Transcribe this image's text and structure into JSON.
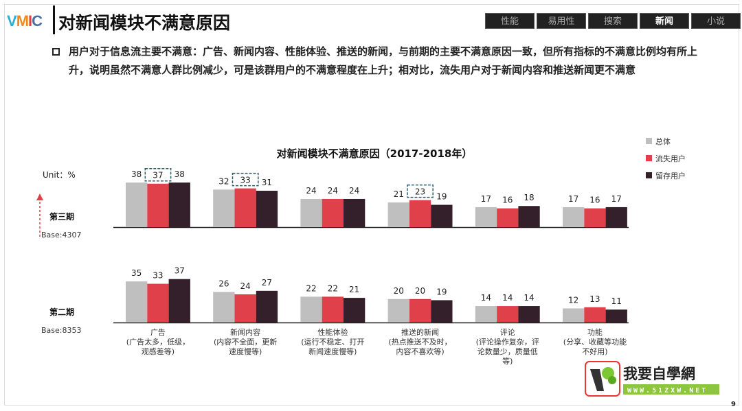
{
  "header": {
    "logo": "VMIC",
    "title": "对新闻模块不满意原因"
  },
  "tabs": [
    {
      "label": "性能",
      "active": false
    },
    {
      "label": "易用性",
      "active": false
    },
    {
      "label": "搜索",
      "active": false
    },
    {
      "label": "新闻",
      "active": true
    },
    {
      "label": "小说",
      "active": false
    }
  ],
  "description": "用户对于信息流主要不满意：广告、新闻内容、性能体验、推送的新闻，与前期的主要不满意原因一致，但所有指标的不满意比例均有所上升，说明虽然不满意人群比例减少，可是该群用户的不满意程度在上升；相对比，流失用户对于新闻内容和推送新闻更不满意",
  "watermark": {
    "text": "我要自學網",
    "url": "WWW.51ZXW.NET"
  },
  "page_number": "9",
  "chart_data": {
    "type": "bar",
    "title": "对新闻模块不满意原因（2017-2018年）",
    "unit_label": "Unit：%",
    "categories": [
      {
        "name": "广告",
        "note": [
          "(广告太多，低级，",
          "观感差等)"
        ]
      },
      {
        "name": "新闻内容",
        "note": [
          "(内容不全面，更新",
          "速度慢等)"
        ]
      },
      {
        "name": "性能体验",
        "note": [
          "(运行不稳定、打开",
          "新闻速度慢等)"
        ]
      },
      {
        "name": "推送的新闻",
        "note": [
          "(热点推送不及时，",
          "内容不喜欢等)"
        ]
      },
      {
        "name": "评论",
        "note": [
          "(评论操作复杂，评",
          "论数量少，质量低",
          "等)"
        ]
      },
      {
        "name": "功能",
        "note": [
          "(分享、收藏等功能",
          "不好用)"
        ]
      }
    ],
    "legend": {
      "placement": "top-right",
      "items": [
        "总体",
        "流失用户",
        "留存用户"
      ]
    },
    "colors": {
      "总体": "#bfbfbf",
      "流失用户": "#e0404a",
      "留存用户": "#33202a",
      "arrow": "#e0404a",
      "highlight_box": "#2f5b6e"
    },
    "panels": [
      {
        "label": "第三期",
        "base": "Base:4307",
        "series": [
          {
            "name": "总体",
            "values": [
              38,
              32,
              24,
              21,
              17,
              17
            ]
          },
          {
            "name": "流失用户",
            "values": [
              37,
              33,
              24,
              23,
              16,
              16
            ]
          },
          {
            "name": "留存用户",
            "values": [
              38,
              31,
              24,
              19,
              18,
              17
            ]
          }
        ],
        "highlighted": {
          "series": "流失用户",
          "categories": [
            0,
            1,
            3
          ]
        }
      },
      {
        "label": "第二期",
        "base": "Base:8353",
        "series": [
          {
            "name": "总体",
            "values": [
              35,
              26,
              22,
              20,
              14,
              12
            ]
          },
          {
            "name": "流失用户",
            "values": [
              33,
              24,
              22,
              20,
              14,
              13
            ]
          },
          {
            "name": "留存用户",
            "values": [
              37,
              27,
              21,
              19,
              14,
              11
            ]
          }
        ]
      }
    ]
  }
}
